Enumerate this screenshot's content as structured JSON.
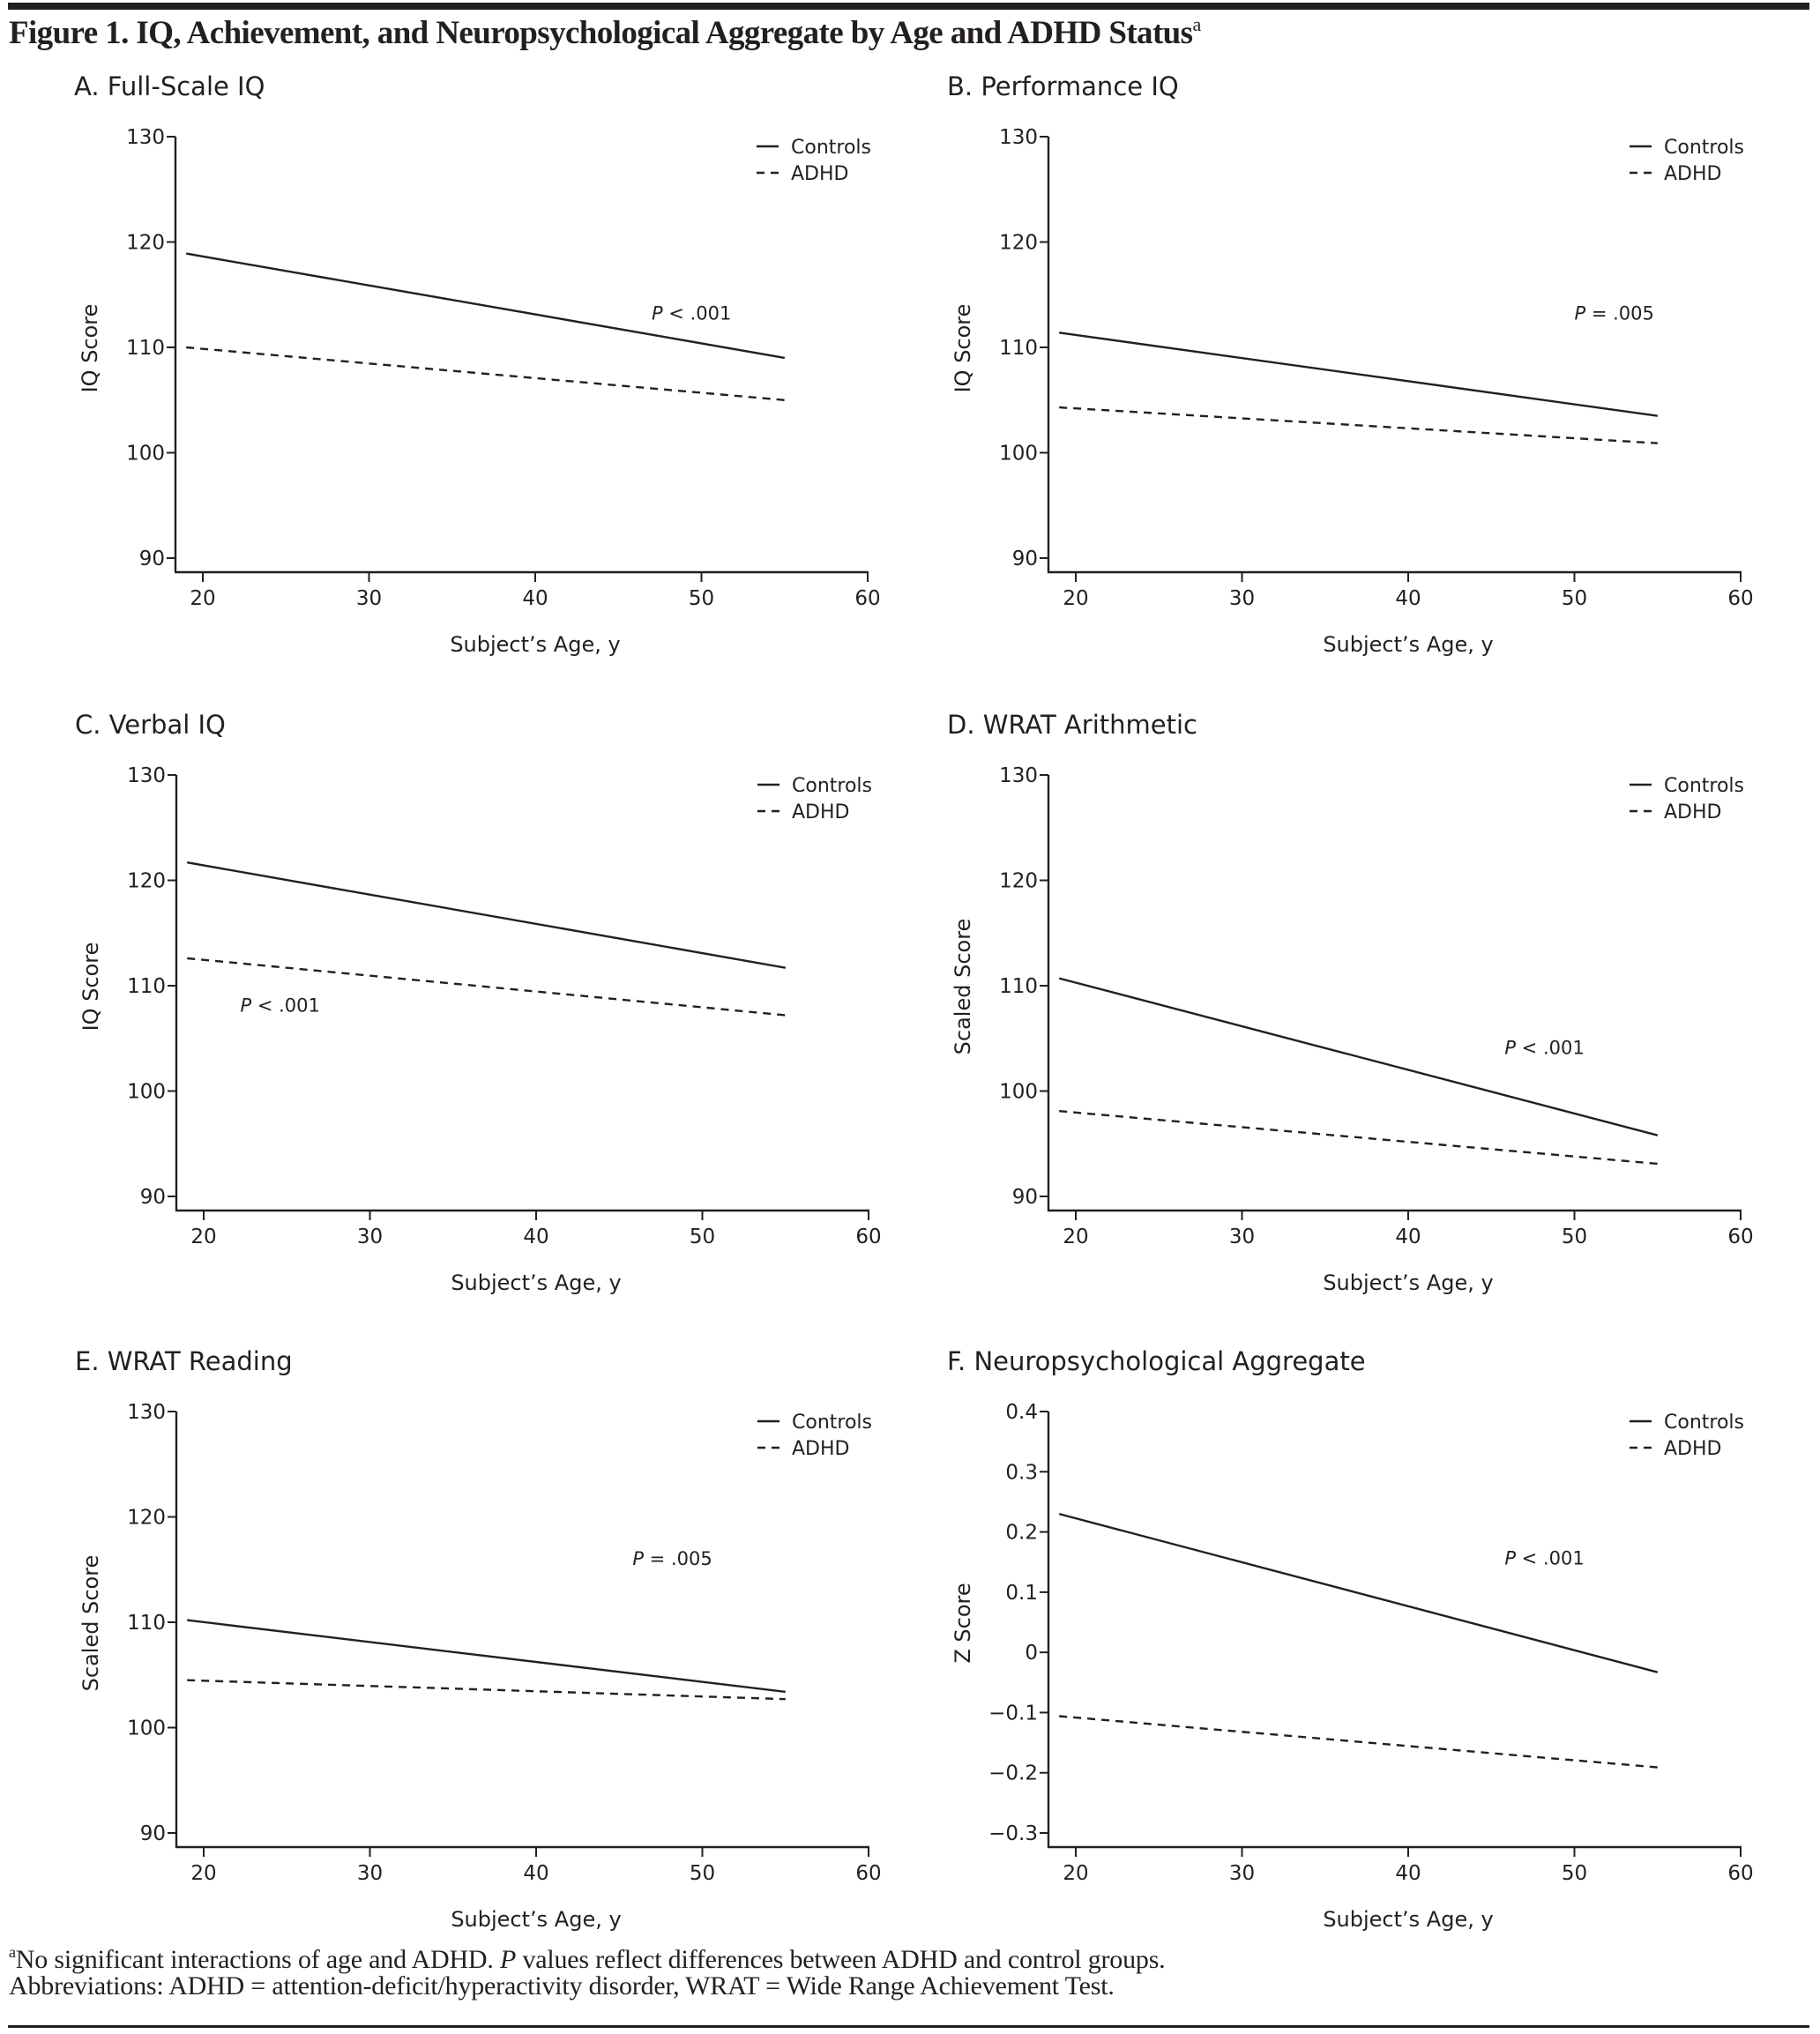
{
  "figure": {
    "title": "Figure 1. IQ, Achievement, and Neuropsychological Aggregate by Age and ADHD Status",
    "title_footnote_marker": "a",
    "footnote": {
      "marker": "a",
      "text_before_italic": "No significant interactions of age and ADHD. ",
      "italic": "P",
      "text_after_italic": " values reflect differences between ADHD and control groups."
    },
    "abbreviations": "Abbreviations: ADHD = attention-deficit/hyperactivity disorder, WRAT = Wide Range Achievement Test."
  },
  "colors": {
    "ink": "#231f20",
    "background": "#ffffff"
  },
  "chart_data": [
    {
      "id": "A",
      "type": "line",
      "title": "A. Full-Scale IQ",
      "xlabel": "Subject’s Age, y",
      "ylabel": "IQ Score",
      "xlim": [
        19,
        60
      ],
      "ylim": [
        90,
        130
      ],
      "xticks": [
        20,
        30,
        40,
        50,
        60
      ],
      "yticks": [
        90,
        100,
        110,
        120,
        130
      ],
      "ytick_labels": [
        "90",
        "100",
        "110",
        "120",
        "130"
      ],
      "grid": false,
      "legend": {
        "position": "top-right",
        "entries": [
          "Controls",
          "ADHD"
        ]
      },
      "annotation": {
        "text_italic": "P",
        "text": " < .001",
        "x": 47,
        "y": 113.3
      },
      "series": [
        {
          "name": "Controls",
          "style": "solid",
          "x": [
            19,
            55
          ],
          "y": [
            118.9,
            109.0
          ]
        },
        {
          "name": "ADHD",
          "style": "dashed",
          "x": [
            19,
            55
          ],
          "y": [
            110.0,
            105.0
          ]
        }
      ]
    },
    {
      "id": "B",
      "type": "line",
      "title": "B. Performance IQ",
      "xlabel": "Subject’s Age, y",
      "ylabel": "IQ Score",
      "xlim": [
        19,
        60
      ],
      "ylim": [
        90,
        130
      ],
      "xticks": [
        20,
        30,
        40,
        50,
        60
      ],
      "yticks": [
        90,
        100,
        110,
        120,
        130
      ],
      "ytick_labels": [
        "90",
        "100",
        "110",
        "120",
        "130"
      ],
      "grid": false,
      "legend": {
        "position": "top-right",
        "entries": [
          "Controls",
          "ADHD"
        ]
      },
      "annotation": {
        "text_italic": "P",
        "text": " = .005",
        "x": 50,
        "y": 113.3
      },
      "series": [
        {
          "name": "Controls",
          "style": "solid",
          "x": [
            19,
            55
          ],
          "y": [
            111.4,
            103.5
          ]
        },
        {
          "name": "ADHD",
          "style": "dashed",
          "x": [
            19,
            55
          ],
          "y": [
            104.3,
            100.9
          ]
        }
      ]
    },
    {
      "id": "C",
      "type": "line",
      "title": "C. Verbal IQ",
      "xlabel": "Subject’s Age, y",
      "ylabel": "IQ Score",
      "xlim": [
        19,
        60
      ],
      "ylim": [
        90,
        130
      ],
      "xticks": [
        20,
        30,
        40,
        50,
        60
      ],
      "yticks": [
        90,
        100,
        110,
        120,
        130
      ],
      "ytick_labels": [
        "90",
        "100",
        "110",
        "120",
        "130"
      ],
      "grid": false,
      "legend": {
        "position": "top-right",
        "entries": [
          "Controls",
          "ADHD"
        ]
      },
      "annotation": {
        "text_italic": "P",
        "text": " < .001",
        "x": 22.2,
        "y": 108.2
      },
      "series": [
        {
          "name": "Controls",
          "style": "solid",
          "x": [
            19,
            55
          ],
          "y": [
            121.7,
            111.7
          ]
        },
        {
          "name": "ADHD",
          "style": "dashed",
          "x": [
            19,
            55
          ],
          "y": [
            112.6,
            107.2
          ]
        }
      ]
    },
    {
      "id": "D",
      "type": "line",
      "title": "D. WRAT Arithmetic",
      "xlabel": "Subject’s Age, y",
      "ylabel": "Scaled Score",
      "xlim": [
        19,
        60
      ],
      "ylim": [
        90,
        130
      ],
      "xticks": [
        20,
        30,
        40,
        50,
        60
      ],
      "yticks": [
        90,
        100,
        110,
        120,
        130
      ],
      "ytick_labels": [
        "90",
        "100",
        "110",
        "120",
        "130"
      ],
      "grid": false,
      "legend": {
        "position": "top-right",
        "entries": [
          "Controls",
          "ADHD"
        ]
      },
      "annotation": {
        "text_italic": "P",
        "text": " < .001",
        "x": 45.8,
        "y": 104.2
      },
      "series": [
        {
          "name": "Controls",
          "style": "solid",
          "x": [
            19,
            55
          ],
          "y": [
            110.7,
            95.8
          ]
        },
        {
          "name": "ADHD",
          "style": "dashed",
          "x": [
            19,
            55
          ],
          "y": [
            98.1,
            93.1
          ]
        }
      ]
    },
    {
      "id": "E",
      "type": "line",
      "title": "E. WRAT Reading",
      "xlabel": "Subject’s Age, y",
      "ylabel": "Scaled Score",
      "xlim": [
        19,
        60
      ],
      "ylim": [
        90,
        130
      ],
      "xticks": [
        20,
        30,
        40,
        50,
        60
      ],
      "yticks": [
        90,
        100,
        110,
        120,
        130
      ],
      "ytick_labels": [
        "90",
        "100",
        "110",
        "120",
        "130"
      ],
      "grid": false,
      "legend": {
        "position": "top-right",
        "entries": [
          "Controls",
          "ADHD"
        ]
      },
      "annotation": {
        "text_italic": "P",
        "text": " = .005",
        "x": 45.8,
        "y": 116.1
      },
      "series": [
        {
          "name": "Controls",
          "style": "solid",
          "x": [
            19,
            55
          ],
          "y": [
            110.2,
            103.4
          ]
        },
        {
          "name": "ADHD",
          "style": "dashed",
          "x": [
            19,
            55
          ],
          "y": [
            104.5,
            102.7
          ]
        }
      ]
    },
    {
      "id": "F",
      "type": "line",
      "title": "F. Neuropsychological Aggregate",
      "xlabel": "Subject’s Age, y",
      "ylabel": "Z Score",
      "xlim": [
        19,
        60
      ],
      "ylim": [
        -0.3,
        0.4
      ],
      "xticks": [
        20,
        30,
        40,
        50,
        60
      ],
      "yticks": [
        -0.3,
        -0.2,
        -0.1,
        0,
        0.1,
        0.2,
        0.3,
        0.4
      ],
      "ytick_labels": [
        "−0.3",
        "−0.2",
        "−0.1",
        "0",
        "0.1",
        "0.2",
        "0.3",
        "0.4"
      ],
      "grid": false,
      "legend": {
        "position": "top-right",
        "entries": [
          "Controls",
          "ADHD"
        ]
      },
      "annotation": {
        "text_italic": "P",
        "text": " < .001",
        "x": 45.8,
        "y": 0.158
      },
      "series": [
        {
          "name": "Controls",
          "style": "solid",
          "x": [
            19,
            55
          ],
          "y": [
            0.23,
            -0.033
          ]
        },
        {
          "name": "ADHD",
          "style": "dashed",
          "x": [
            19,
            55
          ],
          "y": [
            -0.106,
            -0.191
          ]
        }
      ]
    }
  ]
}
